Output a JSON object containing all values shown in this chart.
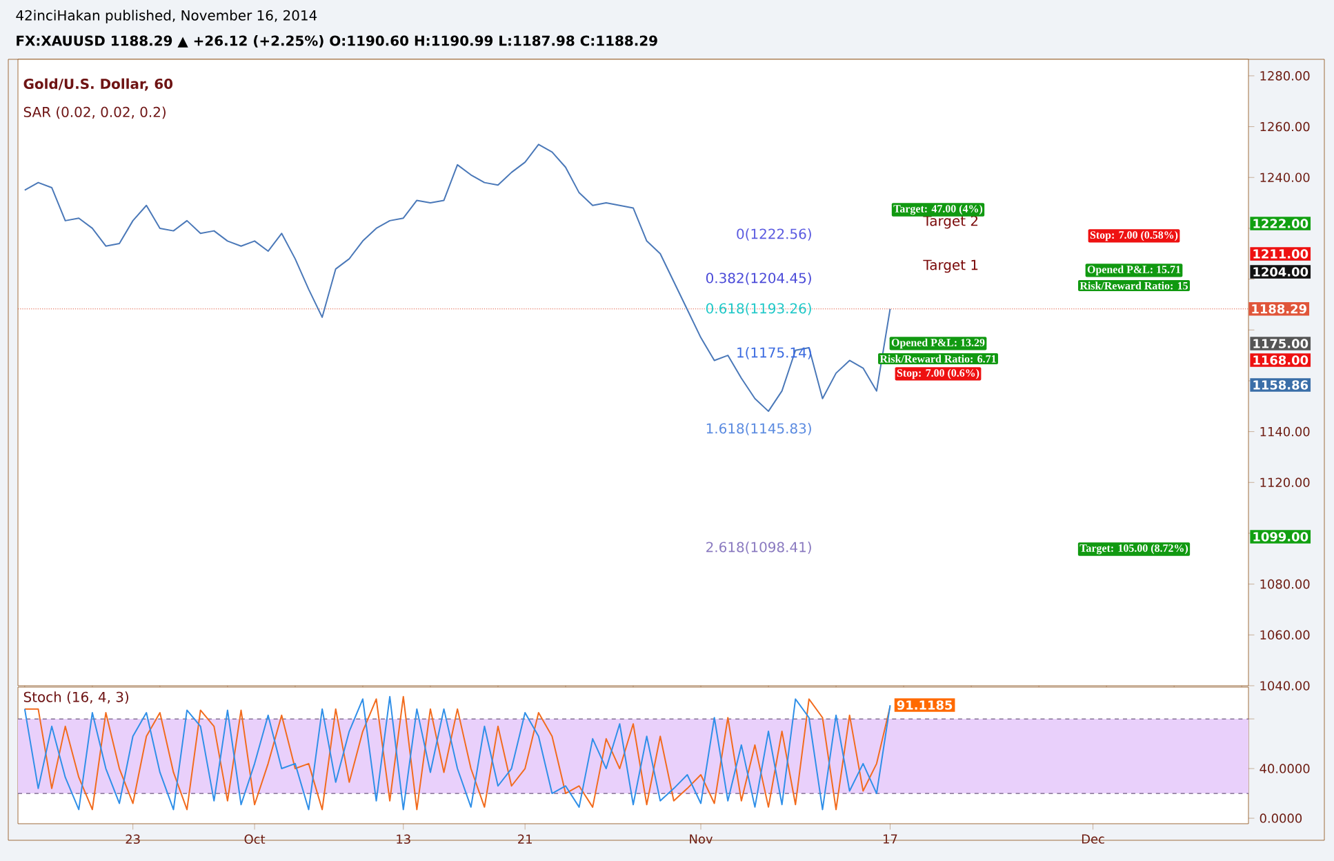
{
  "chart_data": [
    {
      "type": "line",
      "title": "Gold/U.S. Dollar, 60",
      "subtitle": "SAR (0.02, 0.02, 0.2)",
      "annotations": [
        "42inciHakan published, November 16, 2014",
        "FX:XAUUSD 1188.29 ▲ +26.12 (+2.25%) O:1190.60 H:1190.99 L:1187.98 C:1188.29",
        "0(1222.56)",
        "0.382(1204.45)",
        "0.618(1193.26)",
        "1(1175.14)",
        "1.618(1145.83)",
        "2.618(1098.41)",
        "Target 2",
        "Target 1",
        "Target: 47.00 (4%)",
        "Opened P&L: 13.29",
        "Risk/Reward Ratio: 6.71",
        "Stop: 7.00 (0.6%)",
        "Stop: 7.00 (0.58%)",
        "Opened P&L: 15.71",
        "Risk/Reward Ratio: 15",
        "Target: 105.00 (8.72%)",
        "1222.00",
        "1211.00",
        "1204.00",
        "1175.00",
        "1168.00",
        "1158.86",
        "1099.00"
      ],
      "categories": [
        null,
        null,
        null,
        null,
        null,
        null,
        null,
        null,
        null,
        null,
        null,
        null,
        null,
        null,
        null,
        null,
        null,
        null,
        null,
        null,
        null,
        null,
        null,
        null,
        null,
        null,
        null,
        null,
        null,
        null,
        null,
        null,
        null,
        null,
        null,
        null,
        null,
        null,
        null,
        null,
        null,
        null,
        null,
        null,
        null,
        null,
        null,
        null,
        null,
        null,
        null,
        null,
        null,
        null,
        null,
        null,
        null,
        null,
        null,
        null,
        null,
        null,
        null,
        null,
        null,
        null,
        null,
        null,
        null,
        null,
        null,
        null,
        null,
        null,
        null,
        null,
        null,
        null,
        null,
        null,
        null,
        null,
        null,
        null,
        null,
        null,
        null,
        null,
        null,
        null,
        null
      ],
      "series": [
        {
          "color": "#4a78b8",
          "values": [
            1235,
            1238,
            1236,
            1223,
            1224,
            1220,
            1213,
            1214,
            1223,
            1229,
            1220,
            1219,
            1223,
            1218,
            1219,
            1215,
            1213,
            1215,
            1211,
            1218,
            1208,
            1196,
            1185,
            1204,
            1208,
            1215,
            1220,
            1223,
            1224,
            1231,
            1230,
            1231,
            1245,
            1241,
            1238,
            1237,
            1242,
            1246,
            1253,
            1250,
            1244,
            1234,
            1229,
            1230,
            1229,
            1228,
            1215,
            1210,
            1199,
            1188,
            1177,
            1168,
            1170,
            1161,
            1153,
            1148,
            1156,
            1172,
            1173,
            1153,
            1163,
            1168,
            1165,
            1156,
            1188.29,
            null,
            null,
            null,
            null,
            null,
            null,
            null,
            null,
            null,
            null,
            null,
            null,
            null,
            null,
            null,
            null,
            null,
            null,
            null,
            null,
            null,
            null,
            null,
            null,
            null,
            null
          ]
        }
      ],
      "ref_lines": [
        {
          "axis": "y",
          "value": 1188.29,
          "label": "1188.29",
          "color": "#e0553a",
          "line_style": "dotted"
        }
      ],
      "ylim": [
        1040,
        1286.5
      ],
      "yticks": [
        {
          "value": 1040,
          "label": "1040.00"
        },
        {
          "value": 1060,
          "label": "1060.00"
        },
        {
          "value": 1080,
          "label": "1080.00"
        },
        {
          "value": 1100,
          "label": null
        },
        {
          "value": 1120,
          "label": "1120.00"
        },
        {
          "value": 1140,
          "label": "1140.00"
        },
        {
          "value": 1160,
          "label": null
        },
        {
          "value": 1180,
          "label": null
        },
        {
          "value": 1200,
          "label": null
        },
        {
          "value": 1220,
          "label": null
        },
        {
          "value": 1240,
          "label": "1240.00"
        },
        {
          "value": 1260,
          "label": "1260.00"
        },
        {
          "value": 1280,
          "label": "1280.00"
        }
      ],
      "tick_labels": "y"
    },
    {
      "type": "line",
      "title": "Stoch (16, 4, 3)",
      "categories": [
        null,
        null,
        null,
        null,
        null,
        null,
        null,
        null,
        "23",
        null,
        null,
        null,
        null,
        null,
        null,
        null,
        null,
        "Oct",
        null,
        null,
        null,
        null,
        null,
        null,
        null,
        null,
        null,
        null,
        "13",
        null,
        null,
        null,
        null,
        null,
        null,
        null,
        null,
        "21",
        null,
        null,
        null,
        null,
        null,
        null,
        null,
        null,
        null,
        null,
        null,
        null,
        "Nov",
        null,
        null,
        null,
        null,
        null,
        null,
        null,
        null,
        null,
        null,
        null,
        null,
        null,
        "17",
        null,
        null,
        null,
        null,
        null,
        null,
        null,
        null,
        null,
        null,
        null,
        null,
        null,
        null,
        "Dec",
        null,
        null,
        null,
        null,
        null,
        null,
        null,
        null,
        null,
        null,
        null
      ],
      "series": [
        {
          "color": "#f26b1d",
          "values": [
            88,
            88,
            24,
            74,
            33,
            7,
            85,
            40,
            12,
            66,
            85,
            37,
            7,
            87,
            74,
            14,
            87,
            11,
            44,
            83,
            40,
            44,
            7,
            88,
            29,
            70,
            96,
            14,
            98,
            7,
            88,
            37,
            88,
            40,
            9,
            74,
            26,
            40,
            85,
            66,
            20,
            26,
            9,
            64,
            40,
            76,
            11,
            66,
            14,
            24,
            35,
            12,
            81,
            14,
            59,
            9,
            70,
            11,
            96,
            81,
            7,
            83,
            22,
            44,
            90,
            null,
            null,
            null,
            null,
            null,
            null,
            null,
            null,
            null,
            null,
            null,
            null,
            null,
            null,
            null,
            null,
            null,
            null,
            null,
            null,
            null,
            null,
            null,
            null,
            null,
            null
          ]
        },
        {
          "color": "#2f8fe8",
          "values": [
            88,
            24,
            74,
            33,
            7,
            85,
            40,
            12,
            66,
            85,
            37,
            7,
            87,
            74,
            14,
            87,
            11,
            44,
            83,
            40,
            44,
            7,
            88,
            29,
            70,
            96,
            14,
            98,
            7,
            88,
            37,
            88,
            40,
            9,
            74,
            26,
            40,
            85,
            66,
            20,
            26,
            9,
            64,
            40,
            76,
            11,
            66,
            14,
            24,
            35,
            12,
            81,
            14,
            59,
            9,
            70,
            11,
            96,
            81,
            7,
            83,
            22,
            44,
            20,
            91.1185,
            null,
            null,
            null,
            null,
            null,
            null,
            null,
            null,
            null,
            null,
            null,
            null,
            null,
            null,
            null,
            null,
            null,
            null,
            null,
            null,
            null,
            null,
            null,
            null,
            null,
            null
          ],
          "value_labels": [
            null,
            null,
            null,
            null,
            null,
            null,
            null,
            null,
            null,
            null,
            null,
            null,
            null,
            null,
            null,
            null,
            null,
            null,
            null,
            null,
            null,
            null,
            null,
            null,
            null,
            null,
            null,
            null,
            null,
            null,
            null,
            null,
            null,
            null,
            null,
            null,
            null,
            null,
            null,
            null,
            null,
            null,
            null,
            null,
            null,
            null,
            null,
            null,
            null,
            null,
            null,
            null,
            null,
            null,
            null,
            null,
            null,
            null,
            null,
            null,
            null,
            null,
            null,
            null,
            "91.1185",
            null,
            null,
            null,
            null,
            null,
            null,
            null,
            null,
            null,
            null,
            null,
            null,
            null,
            null,
            null,
            null,
            null,
            null,
            null,
            null,
            null,
            null,
            null,
            null,
            null,
            null
          ]
        }
      ],
      "bands": [
        {
          "axis": "y",
          "from": 20,
          "to": 80,
          "color": "#e9d0fb"
        }
      ],
      "ref_lines": [
        {
          "axis": "y",
          "value": 20,
          "color": "#6e5a80",
          "line_style": "dashed"
        },
        {
          "axis": "y",
          "value": 80,
          "color": "#6e5a80",
          "line_style": "dashed"
        }
      ],
      "ylim": [
        -4.4,
        105.6
      ],
      "yticks": [
        {
          "value": 0,
          "label": "0.0000"
        },
        {
          "value": 40,
          "label": "40.0000"
        },
        {
          "value": 80,
          "label": null
        }
      ]
    }
  ]
}
